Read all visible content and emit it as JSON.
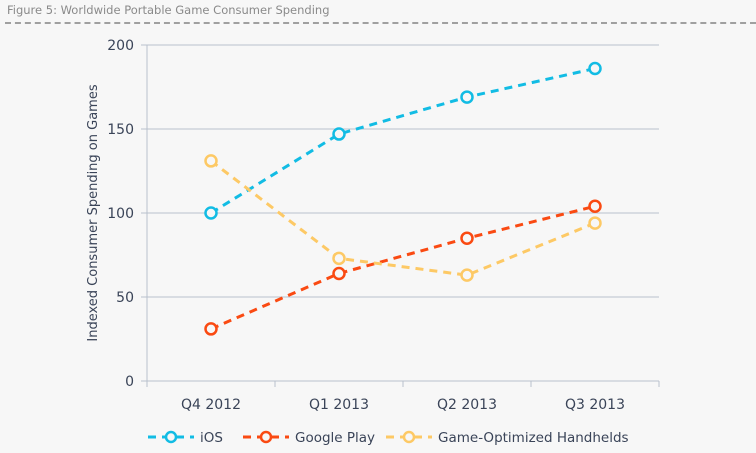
{
  "chart_data": {
    "type": "line",
    "title": "Figure 5:  Worldwide Portable Game Consumer Spending",
    "xlabel": "",
    "ylabel": "Indexed Consumer Spending on Games",
    "categories": [
      "Q4 2012",
      "Q1 2013",
      "Q2 2013",
      "Q3 2013"
    ],
    "ylim": [
      0,
      200
    ],
    "yticks": [
      0,
      50,
      100,
      150,
      200
    ],
    "grid": true,
    "legend": "bottom",
    "series": [
      {
        "name": "iOS",
        "color": "#12bce4",
        "values": [
          100,
          147,
          169,
          186
        ]
      },
      {
        "name": "Google Play",
        "color": "#fa4a12",
        "values": [
          31,
          64,
          85,
          104
        ]
      },
      {
        "name": "Game-Optimized Handhelds",
        "color": "#fdc965",
        "values": [
          131,
          73,
          63,
          94
        ]
      }
    ]
  }
}
